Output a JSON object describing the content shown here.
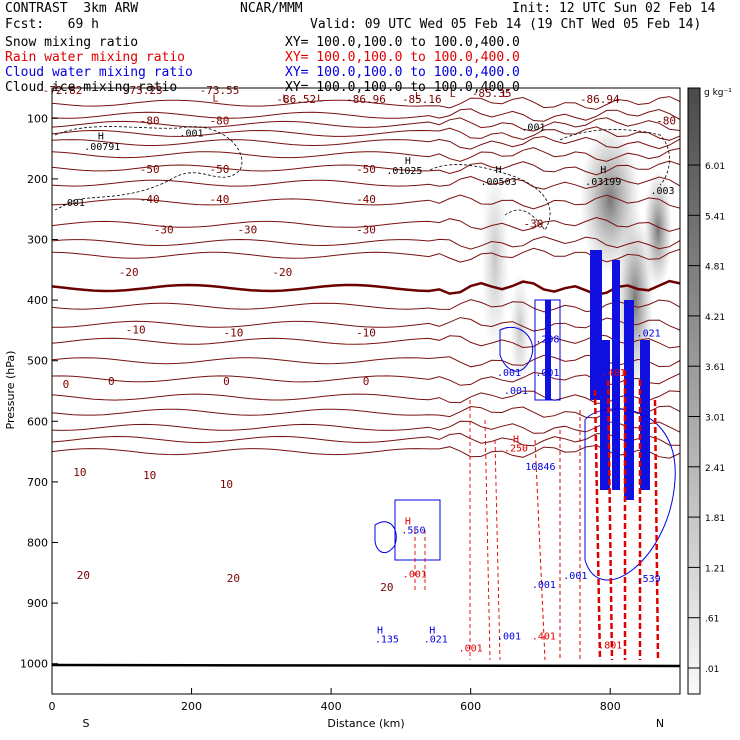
{
  "header": {
    "model": "CONTRAST  3km ARW",
    "center": "NCAR/MMM",
    "init": "Init: 12 UTC Sun 02 Feb 14",
    "fcst": "Fcst:   69 h",
    "valid": "Valid: 09 UTC Wed 05 Feb 14 (19 ChT Wed 05 Feb 14)",
    "fields": [
      {
        "name": "Snow mixing ratio",
        "xy": "XY= 100.0,100.0 to 100.0,400.0",
        "color": "#000000"
      },
      {
        "name": "Rain water mixing ratio",
        "xy": "XY= 100.0,100.0 to 100.0,400.0",
        "color": "#e00000"
      },
      {
        "name": "Cloud water mixing ratio",
        "xy": "XY= 100.0,100.0 to 100.0,400.0",
        "color": "#0000e0"
      },
      {
        "name": "Cloud ice mixing ratio",
        "xy": "XY= 100.0,100.0 to 100.0,400.0",
        "color": "#000000"
      }
    ]
  },
  "chart_data": {
    "type": "cross-section",
    "xlabel": "Distance (km)",
    "ylabel": "Pressure (hPa)",
    "xlim": [
      0,
      900
    ],
    "ylim": [
      1050,
      50
    ],
    "xticks": [
      0,
      200,
      400,
      600,
      800
    ],
    "yticks": [
      100,
      200,
      300,
      400,
      500,
      600,
      700,
      800,
      900,
      1000
    ],
    "x_end_labels": {
      "left": "S",
      "right": "N"
    },
    "colorbar": {
      "units": "g kg⁻¹",
      "ticks": [
        "6.01",
        "5.41",
        "4.81",
        "4.21",
        "3.61",
        "3.01",
        "2.41",
        "1.81",
        "1.21",
        ".61",
        ".01"
      ],
      "range": [
        0.01,
        6.61
      ]
    },
    "temperature_isotherms": [
      {
        "label": "-80",
        "p": 120
      },
      {
        "label": "-50",
        "p": 182
      },
      {
        "label": "-40",
        "p": 207
      },
      {
        "label": "-30",
        "p": 238
      },
      {
        "label": "-20",
        "p": 275
      },
      {
        "label": "-10",
        "p": 326
      },
      {
        "label": "0",
        "p": 380
      },
      {
        "label": "10",
        "p": 468
      },
      {
        "label": "20",
        "p": 585
      }
    ],
    "isotherm_labels": [
      {
        "text": "-72.82",
        "x": 15,
        "p": 60
      },
      {
        "text": "-73.23",
        "x": 130,
        "p": 60
      },
      {
        "text": "-73.55",
        "x": 240,
        "p": 60
      },
      {
        "text": "-86.52",
        "x": 350,
        "p": 75
      },
      {
        "text": "-86.96",
        "x": 450,
        "p": 75
      },
      {
        "text": "-85.16",
        "x": 530,
        "p": 75
      },
      {
        "text": "-85.35",
        "x": 630,
        "p": 65
      },
      {
        "text": "-86.94",
        "x": 785,
        "p": 75
      },
      {
        "text": "-80",
        "x": 140,
        "p": 110
      },
      {
        "text": "-80",
        "x": 240,
        "p": 110
      },
      {
        "text": "-80",
        "x": 880,
        "p": 110
      },
      {
        "text": "-50",
        "x": 140,
        "p": 190
      },
      {
        "text": "-50",
        "x": 240,
        "p": 190
      },
      {
        "text": "-50",
        "x": 450,
        "p": 190
      },
      {
        "text": "-40",
        "x": 140,
        "p": 240
      },
      {
        "text": "-40",
        "x": 240,
        "p": 240
      },
      {
        "text": "-40",
        "x": 450,
        "p": 240
      },
      {
        "text": "-30",
        "x": 160,
        "p": 290
      },
      {
        "text": "-30",
        "x": 280,
        "p": 290
      },
      {
        "text": "-30",
        "x": 450,
        "p": 290
      },
      {
        "text": "-30",
        "x": 690,
        "p": 280
      },
      {
        "text": "-20",
        "x": 110,
        "p": 360
      },
      {
        "text": "-20",
        "x": 330,
        "p": 360
      },
      {
        "text": "-10",
        "x": 120,
        "p": 455
      },
      {
        "text": "-10",
        "x": 260,
        "p": 460
      },
      {
        "text": "-10",
        "x": 450,
        "p": 460
      },
      {
        "text": "0",
        "x": 20,
        "p": 545
      },
      {
        "text": "0",
        "x": 85,
        "p": 540
      },
      {
        "text": "0",
        "x": 250,
        "p": 540
      },
      {
        "text": "0",
        "x": 450,
        "p": 540
      },
      {
        "text": "10",
        "x": 40,
        "p": 690
      },
      {
        "text": "10",
        "x": 140,
        "p": 695
      },
      {
        "text": "10",
        "x": 250,
        "p": 710
      },
      {
        "text": "20",
        "x": 45,
        "p": 860
      },
      {
        "text": "20",
        "x": 260,
        "p": 865
      },
      {
        "text": "20",
        "x": 480,
        "p": 880
      }
    ],
    "maxima_labels": [
      {
        "text": "H",
        "x": 70,
        "p": 135,
        "series": "ice"
      },
      {
        "text": ".00791",
        "x": 72,
        "p": 152,
        "series": "ice"
      },
      {
        "text": ".001",
        "x": 200,
        "p": 130,
        "series": "ice"
      },
      {
        "text": ".001",
        "x": 30,
        "p": 245,
        "series": "ice"
      },
      {
        "text": "H",
        "x": 510,
        "p": 175,
        "series": "ice"
      },
      {
        "text": ".01025",
        "x": 505,
        "p": 192,
        "series": "ice"
      },
      {
        "text": "H",
        "x": 640,
        "p": 190,
        "series": "ice"
      },
      {
        "text": ".00503",
        "x": 640,
        "p": 210,
        "series": "ice"
      },
      {
        "text": "H",
        "x": 790,
        "p": 190,
        "series": "snow"
      },
      {
        "text": ".03199",
        "x": 790,
        "p": 210,
        "series": "snow"
      },
      {
        "text": ".003",
        "x": 875,
        "p": 225,
        "series": "ice"
      },
      {
        "text": ".001",
        "x": 690,
        "p": 120,
        "series": "ice"
      },
      {
        "text": ".298",
        "x": 710,
        "p": 470,
        "series": "cloud"
      },
      {
        "text": ".001",
        "x": 655,
        "p": 525,
        "series": "cloud"
      },
      {
        "text": ".001",
        "x": 710,
        "p": 525,
        "series": "cloud"
      },
      {
        "text": ".001",
        "x": 665,
        "p": 555,
        "series": "cloud"
      },
      {
        "text": "H",
        "x": 665,
        "p": 635,
        "series": "rain"
      },
      {
        "text": ".250",
        "x": 665,
        "p": 650,
        "series": "rain"
      },
      {
        "text": "10846",
        "x": 700,
        "p": 680,
        "series": "cloud"
      },
      {
        "text": "H",
        "x": 510,
        "p": 770,
        "series": "rain"
      },
      {
        "text": ".550",
        "x": 518,
        "p": 785,
        "series": "cloud"
      },
      {
        "text": ".001",
        "x": 520,
        "p": 858,
        "series": "rain"
      },
      {
        "text": ".001",
        "x": 750,
        "p": 860,
        "series": "cloud"
      },
      {
        "text": ".001",
        "x": 705,
        "p": 875,
        "series": "cloud"
      },
      {
        "text": ".401",
        "x": 705,
        "p": 960,
        "series": "rain"
      },
      {
        "text": "H",
        "x": 470,
        "p": 950,
        "series": "cloud"
      },
      {
        "text": ".135",
        "x": 480,
        "p": 965,
        "series": "cloud"
      },
      {
        "text": "H",
        "x": 545,
        "p": 950,
        "series": "cloud"
      },
      {
        "text": ".021",
        "x": 550,
        "p": 965,
        "series": "cloud"
      },
      {
        "text": ".001",
        "x": 600,
        "p": 980,
        "series": "rain"
      },
      {
        "text": ".001",
        "x": 655,
        "p": 960,
        "series": "cloud"
      },
      {
        "text": ".801",
        "x": 800,
        "p": 975,
        "series": "rain"
      },
      {
        "text": ".539",
        "x": 855,
        "p": 865,
        "series": "cloud"
      },
      {
        "text": ".401",
        "x": 805,
        "p": 525,
        "series": "rain"
      },
      {
        "text": ".021",
        "x": 855,
        "p": 460,
        "series": "cloud"
      }
    ],
    "annotations": {
      "h": "H",
      "l": "L"
    }
  }
}
